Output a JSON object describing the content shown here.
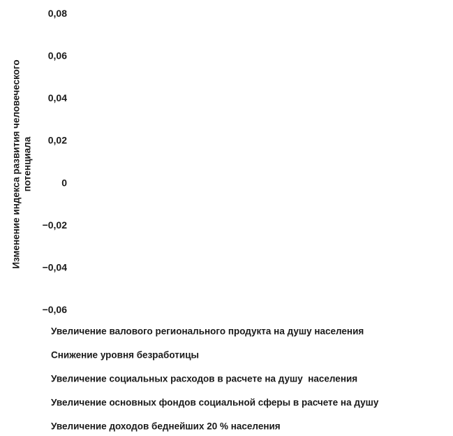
{
  "chart_data": {
    "type": "bar",
    "title": "",
    "xlabel": "",
    "ylabel_lines": [
      "Изменение индекса развития человеческого",
      "потенциала"
    ],
    "ylim": [
      -0.06,
      0.08
    ],
    "yticks": [
      "0,08",
      "0,06",
      "0,04",
      "0,02",
      "0",
      "−0,02",
      "−0,04",
      "−0,06"
    ],
    "legend_position": "bottom",
    "series": [
      {
        "name": "Увеличение валового регионального продукта на душу населения"
      },
      {
        "name": "Снижение уровня безработицы"
      },
      {
        "name": "Увеличение социальных расходов в расчете на душу  населения"
      },
      {
        "name": "Увеличение основных фондов социальной сферы в расчете на душу"
      },
      {
        "name": "Увеличение доходов беднейших 20 % населения"
      }
    ],
    "grid": false
  }
}
